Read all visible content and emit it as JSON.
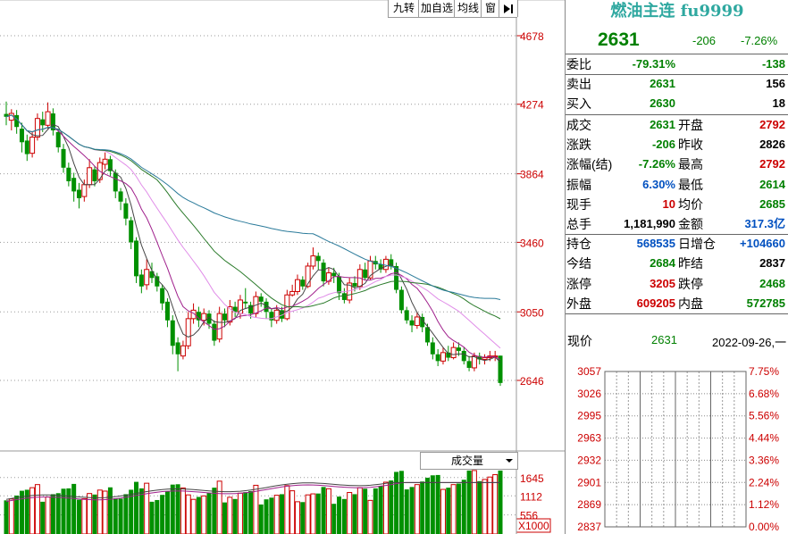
{
  "toolbar": {
    "btn1": "九转",
    "btn2": "加自选",
    "btn3": "均线",
    "btn4": "窗",
    "arrow": "arrow-right-icon"
  },
  "kline": {
    "price_ticks": [
      "4678",
      "4274",
      "3864",
      "3460",
      "3050",
      "2646"
    ],
    "candles": [
      [
        4217,
        4200,
        4290,
        4150
      ],
      [
        4180,
        4220,
        4245,
        4120
      ],
      [
        4210,
        4140,
        4240,
        4100
      ],
      [
        4130,
        4050,
        4165,
        3990
      ],
      [
        4060,
        3980,
        4095,
        3940
      ],
      [
        3985,
        4080,
        4110,
        3960
      ],
      [
        4080,
        4190,
        4220,
        4060
      ],
      [
        4185,
        4150,
        4230,
        4110
      ],
      [
        4150,
        4230,
        4285,
        4130
      ],
      [
        4220,
        4120,
        4250,
        4090
      ],
      [
        4110,
        4020,
        4130,
        3990
      ],
      [
        4010,
        3900,
        4040,
        3870
      ],
      [
        3900,
        3820,
        3930,
        3790
      ],
      [
        3840,
        3760,
        3870,
        3700
      ],
      [
        3770,
        3720,
        3810,
        3660
      ],
      [
        3730,
        3800,
        3830,
        3700
      ],
      [
        3800,
        3900,
        3950,
        3780
      ],
      [
        3890,
        3820,
        3910,
        3790
      ],
      [
        3830,
        3930,
        3960,
        3810
      ],
      [
        3920,
        3950,
        3990,
        3890
      ],
      [
        3950,
        3880,
        3970,
        3850
      ],
      [
        3870,
        3760,
        3890,
        3720
      ],
      [
        3760,
        3700,
        3780,
        3650
      ],
      [
        3690,
        3600,
        3720,
        3560
      ],
      [
        3590,
        3460,
        3610,
        3420
      ],
      [
        3470,
        3260,
        3490,
        3220
      ],
      [
        3270,
        3200,
        3300,
        3160
      ],
      [
        3210,
        3300,
        3360,
        3180
      ],
      [
        3290,
        3250,
        3340,
        3220
      ],
      [
        3260,
        3200,
        3280,
        3170
      ],
      [
        3190,
        3100,
        3210,
        3060
      ],
      [
        3110,
        3000,
        3130,
        2960
      ],
      [
        3000,
        2850,
        3030,
        2800
      ],
      [
        2870,
        2800,
        2900,
        2700
      ],
      [
        2790,
        2850,
        2880,
        2770
      ],
      [
        2850,
        3010,
        3050,
        2830
      ],
      [
        3010,
        3060,
        3100,
        2980
      ],
      [
        3050,
        3000,
        3080,
        2960
      ],
      [
        3000,
        3040,
        3070,
        2970
      ],
      [
        3040,
        2980,
        3060,
        2950
      ],
      [
        2980,
        2880,
        3000,
        2850
      ],
      [
        2890,
        3040,
        3080,
        2870
      ],
      [
        3040,
        3000,
        3070,
        2960
      ],
      [
        2990,
        3080,
        3120,
        2970
      ],
      [
        3080,
        3050,
        3110,
        3020
      ],
      [
        3040,
        3120,
        3150,
        3010
      ],
      [
        3110,
        3100,
        3190,
        3070
      ],
      [
        3090,
        3040,
        3110,
        3010
      ],
      [
        3040,
        3140,
        3170,
        3020
      ],
      [
        3140,
        3110,
        3160,
        3080
      ],
      [
        3110,
        3050,
        3130,
        3010
      ],
      [
        3050,
        3000,
        3070,
        2960
      ],
      [
        3000,
        3060,
        3090,
        2980
      ],
      [
        3060,
        3010,
        3080,
        2990
      ],
      [
        3010,
        3150,
        3180,
        3000
      ],
      [
        3150,
        3170,
        3210,
        3140
      ],
      [
        3170,
        3240,
        3270,
        3150
      ],
      [
        3240,
        3200,
        3260,
        3180
      ],
      [
        3200,
        3320,
        3340,
        3190
      ],
      [
        3320,
        3380,
        3430,
        3300
      ],
      [
        3380,
        3350,
        3400,
        3300
      ],
      [
        3340,
        3230,
        3360,
        3200
      ],
      [
        3230,
        3280,
        3310,
        3210
      ],
      [
        3280,
        3260,
        3310,
        3220
      ],
      [
        3260,
        3160,
        3280,
        3120
      ],
      [
        3160,
        3120,
        3190,
        3100
      ],
      [
        3120,
        3220,
        3250,
        3100
      ],
      [
        3220,
        3200,
        3260,
        3170
      ],
      [
        3200,
        3300,
        3330,
        3180
      ],
      [
        3300,
        3250,
        3340,
        3240
      ],
      [
        3250,
        3350,
        3380,
        3240
      ],
      [
        3350,
        3330,
        3380,
        3300
      ],
      [
        3330,
        3300,
        3360,
        3280
      ],
      [
        3300,
        3360,
        3380,
        3280
      ],
      [
        3360,
        3320,
        3390,
        3300
      ],
      [
        3320,
        3180,
        3340,
        3160
      ],
      [
        3180,
        3060,
        3200,
        3040
      ],
      [
        3060,
        3000,
        3080,
        2980
      ],
      [
        3000,
        2970,
        3030,
        2930
      ],
      [
        2970,
        3020,
        3050,
        2950
      ],
      [
        3020,
        2960,
        3040,
        2930
      ],
      [
        2960,
        2870,
        2980,
        2850
      ],
      [
        2870,
        2800,
        2900,
        2770
      ],
      [
        2800,
        2760,
        2830,
        2730
      ],
      [
        2760,
        2810,
        2840,
        2740
      ],
      [
        2810,
        2780,
        2850,
        2760
      ],
      [
        2780,
        2840,
        2870,
        2770
      ],
      [
        2840,
        2820,
        2870,
        2790
      ],
      [
        2820,
        2760,
        2840,
        2740
      ],
      [
        2760,
        2720,
        2790,
        2700
      ],
      [
        2720,
        2790,
        2810,
        2700
      ],
      [
        2790,
        2770,
        2810,
        2740
      ],
      [
        2770,
        2780,
        2800,
        2740
      ],
      [
        2780,
        2790,
        2820,
        2760
      ],
      [
        2790,
        2790,
        2820,
        2760
      ],
      [
        2792,
        2631,
        2792,
        2614
      ]
    ]
  },
  "volume": {
    "selector": "成交量",
    "selector_icon": "triangle-down-icon",
    "ticks": [
      "1645",
      "1112",
      "556"
    ],
    "unit": "X1000"
  },
  "quote": {
    "title": "燃油主连 fu9999",
    "last": "2631",
    "change": "-206",
    "change_pct": "-7.26%",
    "weibi_label": "委比",
    "weibi_pct": "-79.31%",
    "weibi_val": "-138",
    "sell_label": "卖出",
    "sell_price": "2631",
    "sell_vol": "156",
    "buy_label": "买入",
    "buy_price": "2630",
    "buy_vol": "18",
    "rows": [
      {
        "l1": "成交",
        "v1": "2631",
        "c1": "green",
        "l2": "开盘",
        "v2": "2792",
        "c2": "red"
      },
      {
        "l1": "涨跌",
        "v1": "-206",
        "c1": "green",
        "l2": "昨收",
        "v2": "2826",
        "c2": "black"
      },
      {
        "l1": "涨幅(结)",
        "v1": "-7.26%",
        "c1": "green",
        "l2": "最高",
        "v2": "2792",
        "c2": "red"
      },
      {
        "l1": "振幅",
        "v1": "6.30%",
        "c1": "blue",
        "l2": "最低",
        "v2": "2614",
        "c2": "green"
      },
      {
        "l1": "现手",
        "v1": "10",
        "c1": "red",
        "l2": "均价",
        "v2": "2685",
        "c2": "green"
      },
      {
        "l1": "总手",
        "v1": "1,181,990",
        "c1": "black",
        "l2": "金额",
        "v2": "317.3亿",
        "c2": "blue"
      },
      {
        "l1": "持仓",
        "v1": "568535",
        "c1": "blue",
        "l2": "日增仓",
        "v2": "+104660",
        "c2": "blue"
      },
      {
        "l1": "今结",
        "v1": "2684",
        "c1": "green",
        "l2": "昨结",
        "v2": "2837",
        "c2": "black"
      },
      {
        "l1": "涨停",
        "v1": "3205",
        "c1": "red",
        "l2": "跌停",
        "v2": "2468",
        "c2": "green"
      },
      {
        "l1": "外盘",
        "v1": "609205",
        "c1": "red",
        "l2": "内盘",
        "v2": "572785",
        "c2": "green"
      }
    ],
    "now_label": "现价",
    "now_value": "2631",
    "date": "2022-09-26,一"
  },
  "mini": {
    "left_ticks": [
      "3057",
      "3026",
      "2995",
      "2963",
      "2932",
      "2901",
      "2869",
      "2837"
    ],
    "right_ticks": [
      "7.75%",
      "6.68%",
      "5.56%",
      "4.44%",
      "3.36%",
      "2.24%",
      "1.12%",
      "0.00%"
    ]
  },
  "colors": {
    "up": "#cc0000",
    "down": "#009000",
    "ma5": "#444444",
    "ma10": "#a0208c",
    "ma20": "#e08ce8",
    "ma30": "#2a7a2a",
    "ma60": "#2a7a9a",
    "axis_text": "#cc0000"
  }
}
